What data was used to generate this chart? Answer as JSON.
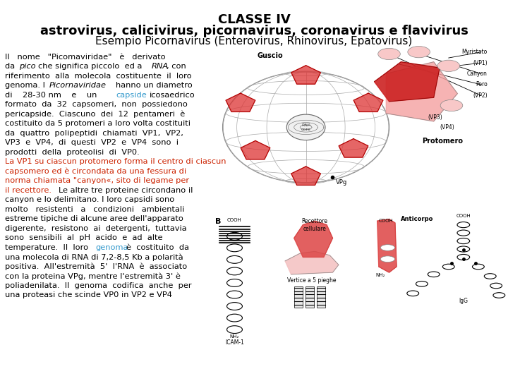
{
  "title_line1": "CLASSE IV",
  "title_line2": "astrovirus, calicivirus, picornavirus, coronavirus e flavivirus",
  "title_line3": "Esempio Picornavirus (Enterovirus, Rhinovirus, Epatovirus)",
  "bg_color": "#ffffff",
  "text_color": "#000000",
  "red_color": "#cc2200",
  "link_color": "#3399cc",
  "font_size_title1": 13,
  "font_size_title2": 13,
  "font_size_title3": 11,
  "font_size_body": 8.2
}
